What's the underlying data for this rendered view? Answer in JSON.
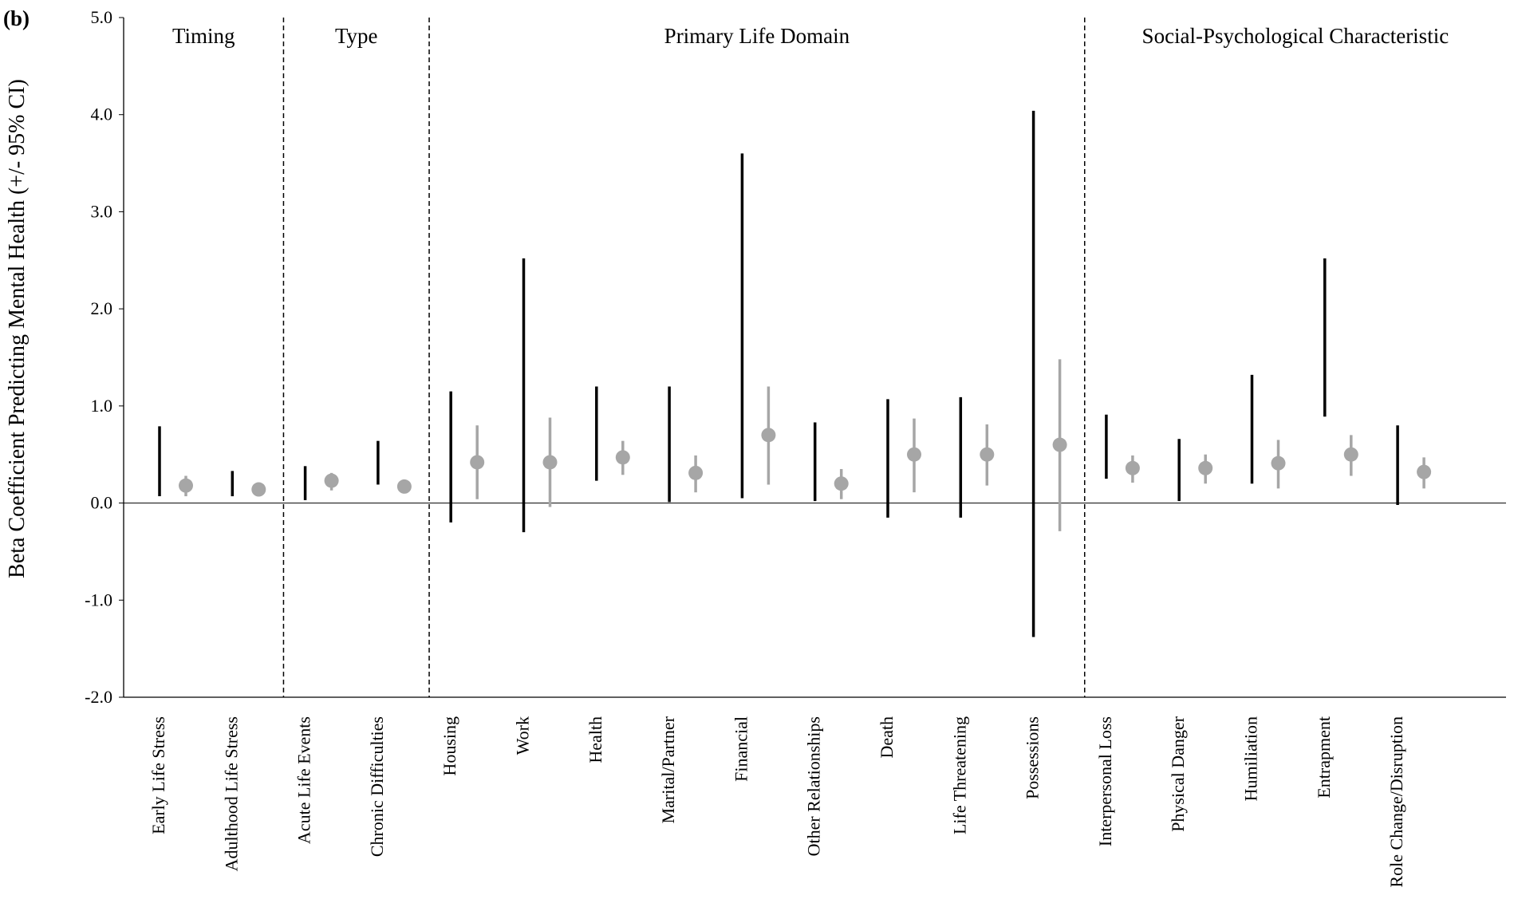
{
  "panel_label": "(b)",
  "chart_data": {
    "type": "error-bar",
    "ylabel": "Beta Coefficient Predicting Mental Health (+/- 95% CI)",
    "xlabel": "",
    "ylim": [
      -2.0,
      5.0
    ],
    "yticks": [
      -2.0,
      -1.0,
      0.0,
      1.0,
      2.0,
      3.0,
      4.0,
      5.0
    ],
    "ytick_labels": [
      "-2.0",
      "-1.0",
      "0.0",
      "1.0",
      "2.0",
      "3.0",
      "4.0",
      "5.0"
    ],
    "zero_line": true,
    "colors": {
      "dark_series": "#000000",
      "gray_series": "#a6a6a6"
    },
    "groups": [
      {
        "label": "Timing",
        "categories": [
          "Early Life Stress",
          "Adulthood Life Stress"
        ]
      },
      {
        "label": "Type",
        "categories": [
          "Acute Life Events",
          "Chronic Difficulties"
        ]
      },
      {
        "label": "Primary Life Domain",
        "categories": [
          "Housing",
          "Work",
          "Health",
          "Marital/Partner",
          "Financial",
          "Other Relationships",
          "Death",
          "Life Threatening",
          "Possessions"
        ]
      },
      {
        "label": "Social-Psychological Characteristic",
        "categories": [
          "Interpersonal Loss",
          "Physical Danger",
          "Humiliation",
          "Entrapment",
          "Role Change/Disruption"
        ]
      }
    ],
    "categories": [
      "Early Life Stress",
      "Adulthood Life Stress",
      "Acute Life Events",
      "Chronic Difficulties",
      "Housing",
      "Work",
      "Health",
      "Marital/Partner",
      "Financial",
      "Other Relationships",
      "Death",
      "Life Threatening",
      "Possessions",
      "Interpersonal Loss",
      "Physical Danger",
      "Humiliation",
      "Entrapment",
      "Role Change/Disruption"
    ],
    "series": [
      {
        "style": "black interval",
        "low": [
          0.07,
          0.07,
          0.03,
          0.19,
          -0.2,
          -0.3,
          0.23,
          0.01,
          0.05,
          0.02,
          -0.15,
          -0.15,
          -1.38,
          0.25,
          0.02,
          0.2,
          0.89,
          -0.02
        ],
        "high": [
          0.79,
          0.33,
          0.38,
          0.64,
          1.15,
          2.52,
          1.2,
          1.2,
          3.6,
          0.83,
          1.07,
          1.09,
          4.04,
          0.91,
          0.66,
          1.32,
          2.52,
          0.8
        ]
      },
      {
        "style": "gray point with interval",
        "values": [
          0.18,
          0.14,
          0.23,
          0.17,
          0.42,
          0.42,
          0.47,
          0.31,
          0.7,
          0.2,
          0.5,
          0.5,
          0.6,
          0.36,
          0.36,
          0.41,
          0.5,
          0.32
        ],
        "low": [
          0.07,
          0.1,
          0.13,
          0.12,
          0.04,
          -0.04,
          0.29,
          0.11,
          0.19,
          0.04,
          0.11,
          0.18,
          -0.29,
          0.21,
          0.2,
          0.15,
          0.28,
          0.15
        ],
        "high": [
          0.28,
          0.18,
          0.31,
          0.23,
          0.8,
          0.88,
          0.64,
          0.49,
          1.2,
          0.35,
          0.87,
          0.81,
          1.48,
          0.49,
          0.5,
          0.65,
          0.7,
          0.47
        ]
      }
    ]
  }
}
